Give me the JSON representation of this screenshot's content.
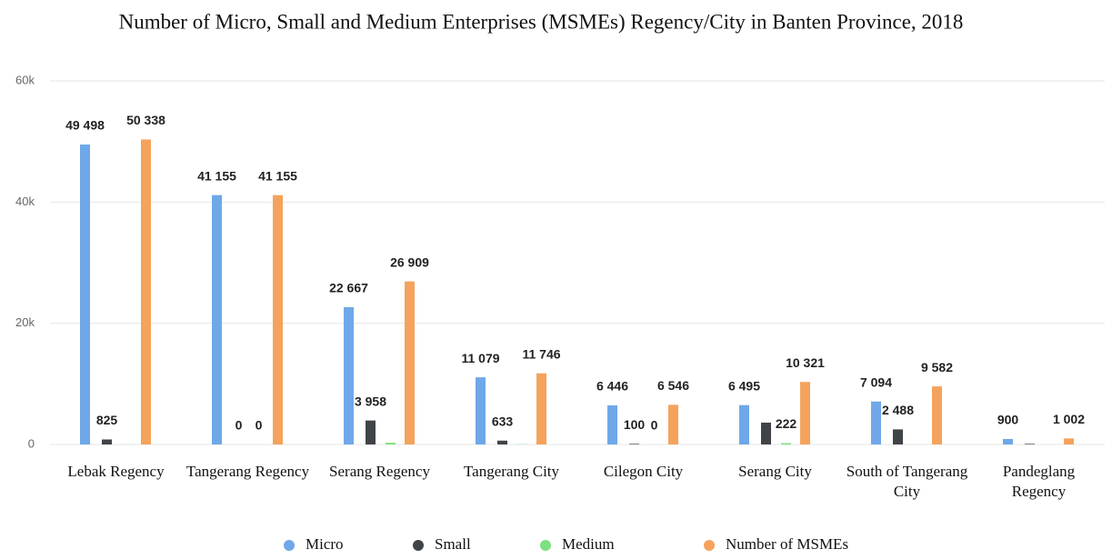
{
  "chart_data": {
    "type": "bar",
    "title": "Number of Micro, Small and Medium Enterprises (MSMEs) Regency/City in Banten Province, 2018",
    "categories": [
      "Lebak Regency",
      "Tangerang Regency",
      "Serang Regency",
      "Tangerang City",
      "Cilegon City",
      "Serang City",
      "South of Tangerang City",
      "Pandeglang Regency"
    ],
    "series": [
      {
        "name": "Micro",
        "color": "#6fa8e8",
        "values": [
          49498,
          41155,
          22667,
          11079,
          6446,
          6495,
          7094,
          900
        ],
        "value_labels": [
          "49 498",
          "41 155",
          "22 667",
          "11 079",
          "6 446",
          "6 495",
          "7 094",
          "900"
        ]
      },
      {
        "name": "Small",
        "color": "#404448",
        "values": [
          825,
          0,
          3958,
          633,
          100,
          3604,
          2488,
          102
        ],
        "value_labels": [
          "825",
          "0",
          "3 958",
          "633",
          "100",
          null,
          "2 488",
          null
        ]
      },
      {
        "name": "Medium",
        "color": "#7ee07e",
        "values": [
          15,
          0,
          284,
          34,
          0,
          222,
          0,
          0
        ],
        "value_labels": [
          null,
          "0",
          null,
          null,
          "0",
          "222",
          null,
          null
        ]
      },
      {
        "name": "Number of MSMEs",
        "color": "#f5a35c",
        "values": [
          50338,
          41155,
          26909,
          11746,
          6546,
          10321,
          9582,
          1002
        ],
        "value_labels": [
          "50 338",
          "41 155",
          "26 909",
          "11 746",
          "6 546",
          "10 321",
          "9 582",
          "1 002"
        ]
      }
    ],
    "ylim": [
      0,
      60000
    ],
    "yticks": [
      0,
      {
        "value": 20000,
        "label": "20k"
      },
      {
        "value": 40000,
        "label": "40k"
      },
      {
        "value": 60000,
        "label": "60k"
      }
    ],
    "grid": true,
    "legend": "bottom"
  }
}
